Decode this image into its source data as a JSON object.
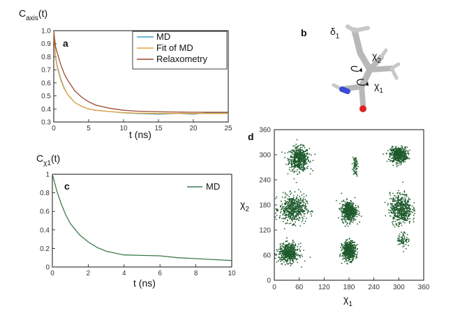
{
  "panels": {
    "a": {
      "label": "a",
      "ylabel_main": "C",
      "ylabel_sub": "axis",
      "ylabel_tail": "(t)",
      "xlabel": "t (ns)"
    },
    "b": {
      "label": "b",
      "delta_main": "δ",
      "delta_sub": "1",
      "chi2_main": "χ",
      "chi2_sub": "2",
      "chi1_main": "χ",
      "chi1_sub": "1"
    },
    "c": {
      "label": "c",
      "ylabel_main": "C",
      "ylabel_sub": "χ1",
      "ylabel_tail": "(t)",
      "xlabel": "t (ns)"
    },
    "d": {
      "label": "d",
      "ylabel_main": "χ",
      "ylabel_sub": "2",
      "xlabel_main": "χ",
      "xlabel_sub": "1"
    }
  },
  "colors": {
    "md": "#3d9fc0",
    "fit": "#e8a23c",
    "relax": "#9c4a2e",
    "md_c": "#3d7a4a",
    "scatter": "#1e5a2c",
    "molecule": "#b8b8b8",
    "nitrogen": "#3b4bd8",
    "oxygen": "#e02020"
  },
  "chart_data": [
    {
      "type": "line",
      "panel": "a",
      "xlabel": "t (ns)",
      "ylabel": "C_axis(t)",
      "xlim": [
        0,
        25
      ],
      "ylim": [
        0.3,
        1.0
      ],
      "xticks": [
        "0",
        "5",
        "10",
        "15",
        "20",
        "25"
      ],
      "yticks": [
        "0.3",
        "0.4",
        "0.5",
        "0.6",
        "0.7",
        "0.8",
        "0.9",
        "1.0"
      ],
      "legend_position": "top-right",
      "x": [
        0,
        0.25,
        0.5,
        1,
        1.5,
        2,
        3,
        4,
        5,
        6,
        8,
        10,
        12,
        15,
        18,
        20,
        22,
        25
      ],
      "series": [
        {
          "name": "MD",
          "color_key": "md",
          "values": [
            1.0,
            0.8,
            0.73,
            0.63,
            0.56,
            0.51,
            0.45,
            0.42,
            0.4,
            0.39,
            0.38,
            0.37,
            0.365,
            0.36,
            0.365,
            0.36,
            0.37,
            0.37
          ]
        },
        {
          "name": "Fit of MD",
          "color_key": "fit",
          "values": [
            1.0,
            0.79,
            0.72,
            0.62,
            0.555,
            0.51,
            0.45,
            0.42,
            0.4,
            0.39,
            0.38,
            0.372,
            0.368,
            0.365,
            0.365,
            0.365,
            0.365,
            0.365
          ]
        },
        {
          "name": "Relaxometry",
          "color_key": "relax",
          "values": [
            1.0,
            0.88,
            0.83,
            0.74,
            0.67,
            0.62,
            0.54,
            0.49,
            0.455,
            0.43,
            0.405,
            0.39,
            0.383,
            0.378,
            0.376,
            0.375,
            0.375,
            0.375
          ]
        }
      ]
    },
    {
      "type": "line",
      "panel": "c",
      "xlabel": "t (ns)",
      "ylabel": "C_χ1(t)",
      "xlim": [
        0,
        10
      ],
      "ylim": [
        0,
        1
      ],
      "xticks": [
        "0",
        "2",
        "4",
        "6",
        "8",
        "10"
      ],
      "yticks": [
        "0",
        "0.2",
        "0.4",
        "0.6",
        "0.8",
        "1"
      ],
      "legend_position": "top-right",
      "x": [
        0,
        0.25,
        0.5,
        0.75,
        1,
        1.5,
        2,
        2.5,
        3,
        3.5,
        4,
        5,
        6,
        7,
        8,
        9,
        10
      ],
      "series": [
        {
          "name": "MD",
          "color_key": "md_c",
          "values": [
            1.0,
            0.82,
            0.68,
            0.56,
            0.47,
            0.35,
            0.27,
            0.21,
            0.17,
            0.15,
            0.13,
            0.125,
            0.12,
            0.1,
            0.09,
            0.08,
            0.07
          ]
        }
      ]
    },
    {
      "type": "scatter",
      "panel": "d",
      "xlabel": "χ1",
      "ylabel": "χ2",
      "xlim": [
        0,
        360
      ],
      "ylim": [
        0,
        360
      ],
      "xticks": [
        "0",
        "60",
        "120",
        "180",
        "240",
        "300",
        "360"
      ],
      "yticks": [
        "0",
        "60",
        "120",
        "180",
        "240",
        "300",
        "360"
      ],
      "clusters": [
        {
          "cx": 60,
          "cy": 290,
          "sx": 12,
          "sy": 14,
          "density": "dense"
        },
        {
          "cx": 300,
          "cy": 300,
          "sx": 10,
          "sy": 9,
          "density": "dense"
        },
        {
          "cx": 45,
          "cy": 170,
          "sx": 16,
          "sy": 16,
          "density": "dense"
        },
        {
          "cx": 180,
          "cy": 165,
          "sx": 9,
          "sy": 12,
          "density": "dense"
        },
        {
          "cx": 305,
          "cy": 170,
          "sx": 13,
          "sy": 18,
          "density": "dense"
        },
        {
          "cx": 35,
          "cy": 65,
          "sx": 12,
          "sy": 11,
          "density": "dense"
        },
        {
          "cx": 180,
          "cy": 70,
          "sx": 8,
          "sy": 11,
          "density": "dense"
        },
        {
          "cx": 310,
          "cy": 95,
          "sx": 7,
          "sy": 9,
          "density": "sparse"
        },
        {
          "cx": 195,
          "cy": 275,
          "sx": 3,
          "sy": 12,
          "density": "sparse"
        }
      ]
    }
  ]
}
